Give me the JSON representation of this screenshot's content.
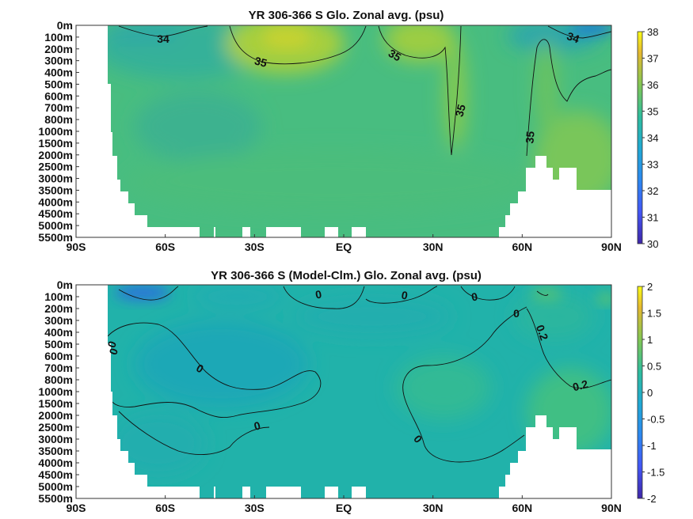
{
  "chart_data": [
    {
      "type": "heatmap",
      "title": "YR 306-366 S Glo. Zonal avg. (psu)",
      "x_ticks": [
        "90S",
        "60S",
        "30S",
        "EQ",
        "30N",
        "60N",
        "90N"
      ],
      "y_ticks": [
        "0m",
        "100m",
        "200m",
        "300m",
        "400m",
        "500m",
        "600m",
        "700m",
        "800m",
        "1000m",
        "1500m",
        "2000m",
        "2500m",
        "3000m",
        "3500m",
        "4000m",
        "4500m",
        "5000m",
        "5500m"
      ],
      "colorbar": {
        "min": 30,
        "max": 38,
        "ticks": [
          "30",
          "31",
          "32",
          "33",
          "34",
          "35",
          "36",
          "37",
          "38"
        ]
      },
      "contour_labels": [
        "34",
        "35",
        "35",
        "35",
        "35",
        "34"
      ]
    },
    {
      "type": "heatmap",
      "title": "YR 306-366 S (Model-Clm.) Glo. Zonal avg. (psu)",
      "x_ticks": [
        "90S",
        "60S",
        "30S",
        "EQ",
        "30N",
        "60N",
        "90N"
      ],
      "y_ticks": [
        "0m",
        "100m",
        "200m",
        "300m",
        "400m",
        "500m",
        "600m",
        "700m",
        "800m",
        "1000m",
        "1500m",
        "2000m",
        "2500m",
        "3000m",
        "3500m",
        "4000m",
        "4500m",
        "5000m",
        "5500m"
      ],
      "colorbar": {
        "min": -2,
        "max": 2,
        "ticks": [
          "2",
          "1.5",
          "1",
          "0.5",
          "0",
          "-0.5",
          "-1",
          "-1.5",
          "-2"
        ]
      },
      "contour_labels": [
        "0",
        "0",
        "0",
        "0",
        "0",
        "0",
        "0",
        "0",
        "0.2",
        "0.2"
      ]
    }
  ],
  "colors": {
    "teal_low": "#2fa7a9",
    "teal_mid": "#33b39c",
    "green_main": "#4fc07a",
    "green_high": "#7cc855",
    "yellow_green": "#a8cf3c",
    "blue_low": "#1c88c5",
    "diff_base": "#20b1ab",
    "diff_pos": "#3dbd89",
    "diff_neg": "#1f8fc3"
  }
}
